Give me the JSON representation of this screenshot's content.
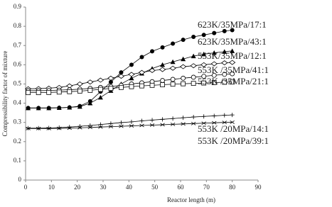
{
  "chart_data": {
    "type": "line",
    "x_label": "Reactor length (m)",
    "y_label": "Compressibility factor of mixture",
    "x": [
      1,
      5,
      9,
      13,
      17,
      21,
      25,
      29,
      33,
      37,
      41,
      45,
      49,
      53,
      57,
      61,
      65,
      69,
      73,
      77,
      80
    ],
    "series": [
      {
        "name": "623K/35MPa/17:1",
        "color": "#000000",
        "marker": "filled-circle",
        "values": [
          0.375,
          0.375,
          0.375,
          0.376,
          0.378,
          0.385,
          0.41,
          0.46,
          0.51,
          0.56,
          0.6,
          0.64,
          0.67,
          0.69,
          0.71,
          0.73,
          0.745,
          0.755,
          0.765,
          0.775,
          0.78
        ]
      },
      {
        "name": "623K/35MPa/43:1",
        "color": "#000000",
        "marker": "filled-triangle",
        "values": [
          0.375,
          0.375,
          0.375,
          0.376,
          0.378,
          0.382,
          0.4,
          0.43,
          0.465,
          0.5,
          0.53,
          0.555,
          0.58,
          0.6,
          0.615,
          0.63,
          0.645,
          0.655,
          0.662,
          0.668,
          0.672
        ]
      },
      {
        "name": "553K/35MPa/12:1",
        "color": "#000000",
        "marker": "open-diamond",
        "values": [
          0.475,
          0.476,
          0.478,
          0.482,
          0.49,
          0.5,
          0.51,
          0.52,
          0.53,
          0.54,
          0.55,
          0.56,
          0.57,
          0.575,
          0.582,
          0.59,
          0.595,
          0.6,
          0.605,
          0.61,
          0.612
        ]
      },
      {
        "name": "553K /35MPa/41:1",
        "color": "#000000",
        "marker": "open-circle",
        "values": [
          0.465,
          0.465,
          0.466,
          0.468,
          0.47,
          0.473,
          0.477,
          0.482,
          0.487,
          0.493,
          0.5,
          0.506,
          0.512,
          0.518,
          0.524,
          0.53,
          0.535,
          0.54,
          0.545,
          0.55,
          0.553
        ]
      },
      {
        "name": "553K /35MPa/21:1",
        "color": "#000000",
        "marker": "open-square",
        "values": [
          0.455,
          0.455,
          0.456,
          0.458,
          0.46,
          0.463,
          0.467,
          0.472,
          0.477,
          0.482,
          0.486,
          0.49,
          0.493,
          0.496,
          0.499,
          0.501,
          0.503,
          0.505,
          0.507,
          0.509,
          0.51
        ]
      },
      {
        "name": "553K /20MPa/14:1",
        "color": "#000000",
        "marker": "plus",
        "values": [
          0.27,
          0.27,
          0.271,
          0.273,
          0.276,
          0.28,
          0.284,
          0.289,
          0.294,
          0.299,
          0.303,
          0.308,
          0.312,
          0.316,
          0.32,
          0.324,
          0.328,
          0.331,
          0.334,
          0.337,
          0.339
        ]
      },
      {
        "name": "553K /20MPa/39:1",
        "color": "#000000",
        "marker": "cross",
        "values": [
          0.268,
          0.268,
          0.268,
          0.269,
          0.27,
          0.272,
          0.274,
          0.276,
          0.278,
          0.28,
          0.282,
          0.284,
          0.286,
          0.288,
          0.29,
          0.292,
          0.294,
          0.296,
          0.298,
          0.3,
          0.301
        ]
      }
    ],
    "xlim": [
      0,
      90
    ],
    "xticks": [
      0,
      10,
      20,
      30,
      40,
      50,
      60,
      70,
      80,
      90
    ],
    "ylim": [
      0,
      0.9
    ],
    "yticks": [
      0,
      0.1,
      0.2,
      0.3,
      0.4,
      0.5,
      0.6,
      0.7,
      0.8,
      0.9
    ],
    "grid": false
  }
}
